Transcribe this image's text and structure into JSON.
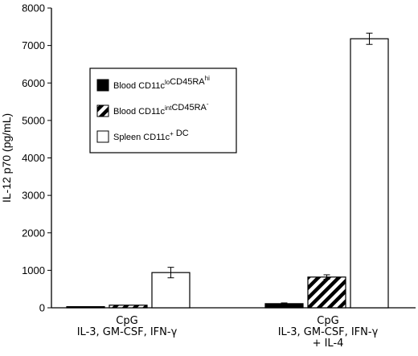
{
  "chart_data": {
    "type": "bar",
    "ylabel": "IL-12 p70 (pg/mL)",
    "ylim": [
      0,
      8000
    ],
    "yticks": [
      0,
      1000,
      2000,
      3000,
      4000,
      5000,
      6000,
      7000,
      8000
    ],
    "categories": [
      {
        "lines": [
          "CpG",
          "IL-3, GM-CSF, IFN-γ"
        ]
      },
      {
        "lines": [
          "CpG",
          "IL-3, GM-CSF, IFN-γ",
          "+ IL-4"
        ]
      }
    ],
    "series": [
      {
        "name_base": "Blood CD11c",
        "sup1": "lo",
        "mid": "CD45RA",
        "sup2": "hi",
        "fill": "solid",
        "values": [
          30,
          110
        ],
        "errors": [
          0,
          20
        ]
      },
      {
        "name_base": "Blood CD11c",
        "sup1": "int",
        "mid": "CD45RA",
        "sup2": "-",
        "fill": "hatch",
        "values": [
          70,
          820
        ],
        "errors": [
          0,
          60
        ]
      },
      {
        "name_base": "Spleen CD11c",
        "sup1": "+",
        "mid": " DC",
        "sup2": "",
        "fill": "white",
        "values": [
          940,
          7180
        ],
        "errors": [
          140,
          150
        ]
      }
    ],
    "legend_position": "upper-left",
    "grid": false
  }
}
